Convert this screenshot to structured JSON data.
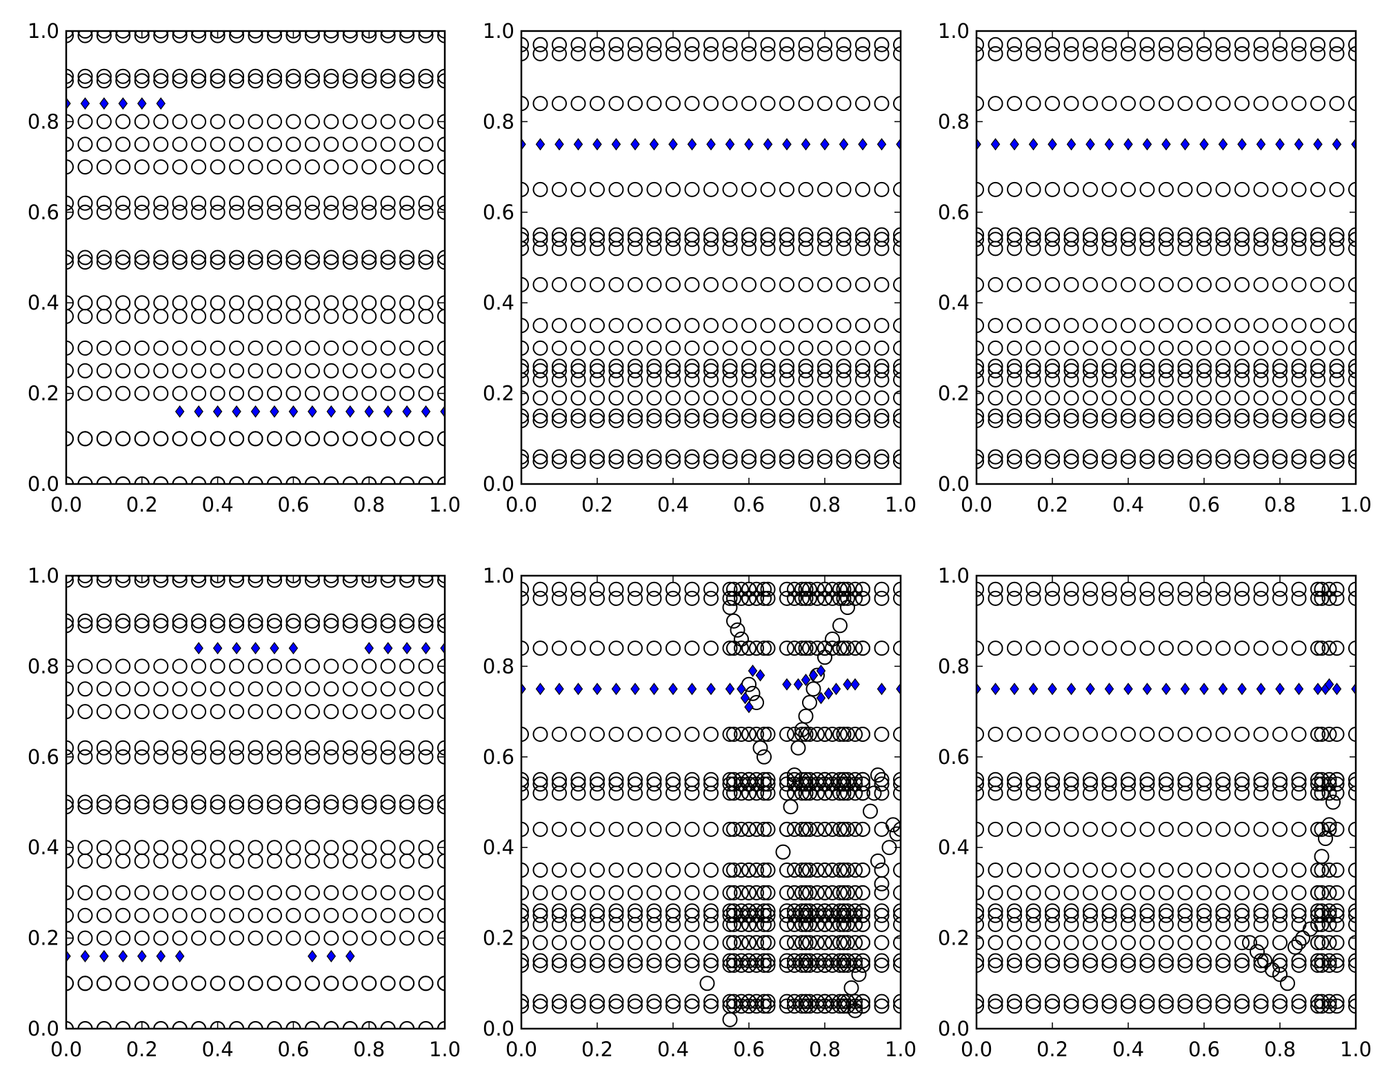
{
  "chart_data": [
    {
      "id": "top-left",
      "type": "scatter",
      "xlim": [
        0,
        1
      ],
      "ylim": [
        0,
        1
      ],
      "xticks": [
        "0.0",
        "0.2",
        "0.4",
        "0.6",
        "0.8",
        "1.0"
      ],
      "yticks": [
        "0.0",
        "0.2",
        "0.4",
        "0.6",
        "0.8",
        "1.0"
      ],
      "grid": false,
      "series": [
        {
          "marker": "circle-open",
          "color": "#000000",
          "x_start": 0.0,
          "x_step": 0.05,
          "x_count": 21,
          "y_levels": [
            0.0,
            0.0,
            0.1,
            0.1,
            0.2,
            0.25,
            0.3,
            0.37,
            0.4,
            0.49,
            0.5,
            0.6,
            0.62,
            0.7,
            0.75,
            0.8,
            0.89,
            0.9,
            0.99,
            1.0
          ]
        },
        {
          "marker": "diamond",
          "color": "#0000ff",
          "segments": [
            {
              "x_from": 0.0,
              "x_to": 0.25,
              "y": 0.84
            },
            {
              "x_from": 0.3,
              "x_to": 1.0,
              "y": 0.16
            }
          ]
        }
      ]
    },
    {
      "id": "top-middle",
      "type": "scatter",
      "xlim": [
        0,
        1
      ],
      "ylim": [
        0,
        1
      ],
      "xticks": [
        "0.0",
        "0.2",
        "0.4",
        "0.6",
        "0.8",
        "1.0"
      ],
      "yticks": [
        "0.0",
        "0.2",
        "0.4",
        "0.6",
        "0.8",
        "1.0"
      ],
      "grid": false,
      "series": [
        {
          "marker": "circle-open",
          "color": "#000000",
          "x_start": 0.0,
          "x_step": 0.05,
          "x_count": 21,
          "y_levels": [
            0.05,
            0.06,
            0.14,
            0.15,
            0.19,
            0.23,
            0.25,
            0.26,
            0.3,
            0.35,
            0.44,
            0.52,
            0.54,
            0.55,
            0.65,
            0.84,
            0.95,
            0.97
          ]
        },
        {
          "marker": "diamond",
          "color": "#0000ff",
          "segments": [
            {
              "x_from": 0.0,
              "x_to": 1.0,
              "y": 0.75
            }
          ]
        }
      ]
    },
    {
      "id": "top-right",
      "type": "scatter",
      "xlim": [
        0,
        1
      ],
      "ylim": [
        0,
        1
      ],
      "xticks": [
        "0.0",
        "0.2",
        "0.4",
        "0.6",
        "0.8",
        "1.0"
      ],
      "yticks": [
        "0.0",
        "0.2",
        "0.4",
        "0.6",
        "0.8",
        "1.0"
      ],
      "grid": false,
      "series": [
        {
          "marker": "circle-open",
          "color": "#000000",
          "x_start": 0.0,
          "x_step": 0.05,
          "x_count": 21,
          "y_levels": [
            0.05,
            0.06,
            0.14,
            0.15,
            0.19,
            0.23,
            0.25,
            0.26,
            0.3,
            0.35,
            0.44,
            0.52,
            0.54,
            0.55,
            0.65,
            0.84,
            0.95,
            0.97
          ]
        },
        {
          "marker": "diamond",
          "color": "#0000ff",
          "segments": [
            {
              "x_from": 0.0,
              "x_to": 1.0,
              "y": 0.75
            }
          ]
        }
      ]
    },
    {
      "id": "bottom-left",
      "type": "scatter",
      "xlim": [
        0,
        1
      ],
      "ylim": [
        0,
        1
      ],
      "xticks": [
        "0.0",
        "0.2",
        "0.4",
        "0.6",
        "0.8",
        "1.0"
      ],
      "yticks": [
        "0.0",
        "0.2",
        "0.4",
        "0.6",
        "0.8",
        "1.0"
      ],
      "grid": false,
      "series": [
        {
          "marker": "circle-open",
          "color": "#000000",
          "x_start": 0.0,
          "x_step": 0.05,
          "x_count": 21,
          "y_levels": [
            0.0,
            0.0,
            0.1,
            0.1,
            0.2,
            0.25,
            0.3,
            0.37,
            0.4,
            0.49,
            0.5,
            0.6,
            0.62,
            0.7,
            0.75,
            0.8,
            0.89,
            0.9,
            0.99,
            1.0
          ]
        },
        {
          "marker": "diamond",
          "color": "#0000ff",
          "segments": [
            {
              "x_from": 0.0,
              "x_to": 0.3,
              "y": 0.16
            },
            {
              "x_from": 0.35,
              "x_to": 0.6,
              "y": 0.84
            },
            {
              "x_from": 0.65,
              "x_to": 0.75,
              "y": 0.16
            },
            {
              "x_from": 0.8,
              "x_to": 1.0,
              "y": 0.84
            }
          ]
        }
      ]
    },
    {
      "id": "bottom-middle",
      "type": "scatter",
      "xlim": [
        0,
        1
      ],
      "ylim": [
        0,
        1
      ],
      "xticks": [
        "0.0",
        "0.2",
        "0.4",
        "0.6",
        "0.8",
        "1.0"
      ],
      "yticks": [
        "0.0",
        "0.2",
        "0.4",
        "0.6",
        "0.8",
        "1.0"
      ],
      "grid": false,
      "series": [
        {
          "marker": "circle-open",
          "color": "#000000",
          "x_start": 0.0,
          "x_step": 0.05,
          "x_count": 21,
          "y_levels": [
            0.05,
            0.06,
            0.14,
            0.15,
            0.19,
            0.23,
            0.25,
            0.26,
            0.3,
            0.35,
            0.44,
            0.52,
            0.54,
            0.55,
            0.65,
            0.84,
            0.95,
            0.97
          ],
          "extra_x": [
            0.56,
            0.58,
            0.6,
            0.62,
            0.64,
            0.72,
            0.74,
            0.76,
            0.78,
            0.8,
            0.82,
            0.84,
            0.86,
            0.88,
            0.9
          ]
        },
        {
          "marker": "circle-open",
          "color": "#000000",
          "points": [
            [
              0.49,
              0.1
            ],
            [
              0.55,
              0.02
            ],
            [
              0.55,
              0.93
            ],
            [
              0.56,
              0.9
            ],
            [
              0.57,
              0.88
            ],
            [
              0.58,
              0.86
            ],
            [
              0.6,
              0.76
            ],
            [
              0.61,
              0.74
            ],
            [
              0.62,
              0.72
            ],
            [
              0.63,
              0.62
            ],
            [
              0.64,
              0.6
            ],
            [
              0.69,
              0.39
            ],
            [
              0.7,
              0.44
            ],
            [
              0.71,
              0.49
            ],
            [
              0.72,
              0.56
            ],
            [
              0.73,
              0.62
            ],
            [
              0.74,
              0.66
            ],
            [
              0.75,
              0.69
            ],
            [
              0.76,
              0.72
            ],
            [
              0.77,
              0.75
            ],
            [
              0.78,
              0.78
            ],
            [
              0.8,
              0.82
            ],
            [
              0.82,
              0.86
            ],
            [
              0.84,
              0.89
            ],
            [
              0.86,
              0.93
            ],
            [
              0.88,
              0.04
            ],
            [
              0.87,
              0.09
            ],
            [
              0.89,
              0.12
            ],
            [
              0.92,
              0.48
            ],
            [
              0.93,
              0.52
            ],
            [
              0.94,
              0.56
            ],
            [
              0.94,
              0.37
            ],
            [
              0.95,
              0.32
            ],
            [
              0.97,
              0.4
            ],
            [
              0.98,
              0.45
            ],
            [
              0.99,
              0.43
            ]
          ]
        },
        {
          "marker": "diamond",
          "color": "#0000ff",
          "segments": [
            {
              "x_from": 0.0,
              "x_to": 0.55,
              "y": 0.75
            },
            {
              "x_from": 0.95,
              "x_to": 1.0,
              "y": 0.75
            }
          ],
          "points": [
            [
              0.58,
              0.75
            ],
            [
              0.59,
              0.73
            ],
            [
              0.6,
              0.71
            ],
            [
              0.61,
              0.79
            ],
            [
              0.63,
              0.78
            ],
            [
              0.7,
              0.76
            ],
            [
              0.73,
              0.76
            ],
            [
              0.75,
              0.77
            ],
            [
              0.77,
              0.78
            ],
            [
              0.79,
              0.79
            ],
            [
              0.79,
              0.73
            ],
            [
              0.81,
              0.74
            ],
            [
              0.83,
              0.75
            ],
            [
              0.86,
              0.76
            ],
            [
              0.88,
              0.76
            ]
          ]
        }
      ]
    },
    {
      "id": "bottom-right",
      "type": "scatter",
      "xlim": [
        0,
        1
      ],
      "ylim": [
        0,
        1
      ],
      "xticks": [
        "0.0",
        "0.2",
        "0.4",
        "0.6",
        "0.8",
        "1.0"
      ],
      "yticks": [
        "0.0",
        "0.2",
        "0.4",
        "0.6",
        "0.8",
        "1.0"
      ],
      "grid": false,
      "series": [
        {
          "marker": "circle-open",
          "color": "#000000",
          "x_start": 0.0,
          "x_step": 0.05,
          "x_count": 21,
          "y_levels": [
            0.05,
            0.06,
            0.14,
            0.15,
            0.19,
            0.23,
            0.25,
            0.26,
            0.3,
            0.35,
            0.44,
            0.52,
            0.54,
            0.55,
            0.65,
            0.84,
            0.95,
            0.97
          ],
          "extra_x": [
            0.91,
            0.93
          ]
        },
        {
          "marker": "circle-open",
          "color": "#000000",
          "points": [
            [
              0.72,
              0.19
            ],
            [
              0.74,
              0.17
            ],
            [
              0.76,
              0.15
            ],
            [
              0.78,
              0.13
            ],
            [
              0.8,
              0.12
            ],
            [
              0.82,
              0.1
            ],
            [
              0.84,
              0.18
            ],
            [
              0.86,
              0.2
            ],
            [
              0.88,
              0.22
            ],
            [
              0.9,
              0.3
            ],
            [
              0.91,
              0.38
            ],
            [
              0.92,
              0.42
            ],
            [
              0.93,
              0.45
            ],
            [
              0.94,
              0.5
            ],
            [
              0.95,
              0.55
            ]
          ]
        },
        {
          "marker": "diamond",
          "color": "#0000ff",
          "segments": [
            {
              "x_from": 0.0,
              "x_to": 1.0,
              "y": 0.75
            }
          ],
          "points": [
            [
              0.92,
              0.75
            ],
            [
              0.93,
              0.76
            ]
          ]
        }
      ]
    }
  ]
}
